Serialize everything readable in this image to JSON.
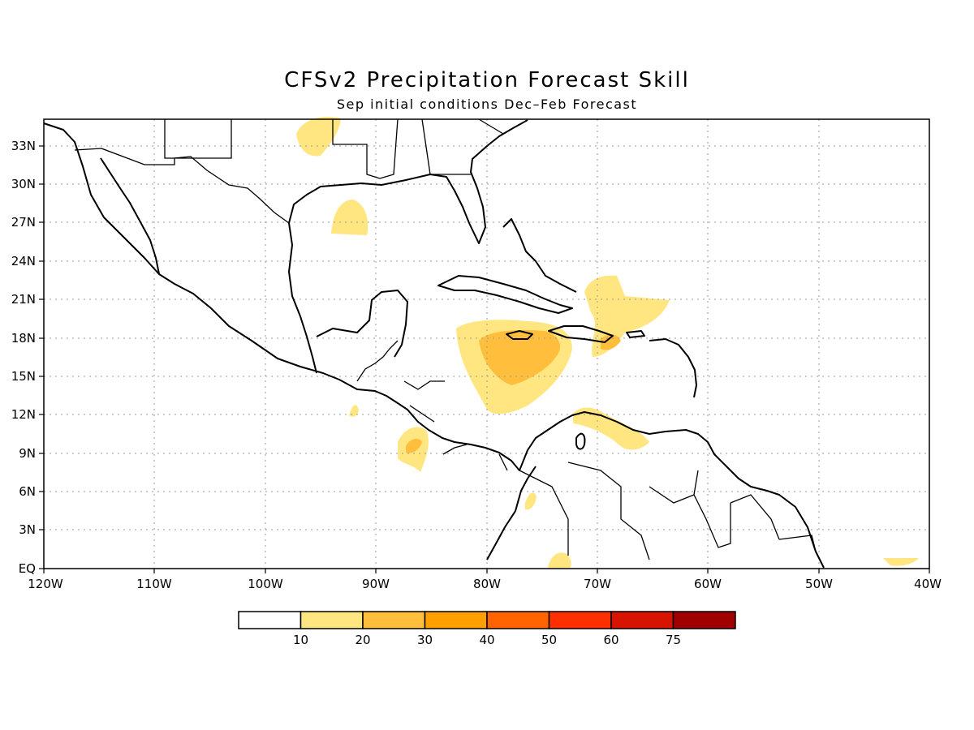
{
  "title": "CFSv2 Precipitation Forecast Skill",
  "subtitle": "Sep initial conditions  Dec–Feb Forecast",
  "lat_labels": [
    "EQ",
    "3N",
    "6N",
    "9N",
    "12N",
    "15N",
    "18N",
    "21N",
    "24N",
    "27N",
    "30N",
    "33N"
  ],
  "lon_labels": [
    "120W",
    "110W",
    "100W",
    "90W",
    "80W",
    "70W",
    "60W",
    "50W",
    "40W"
  ],
  "colorbar": {
    "colors": [
      "#ffffff",
      "#ffe680",
      "#ffbf3c",
      "#ffa000",
      "#ff6400",
      "#ff3000",
      "#d81400",
      "#a00000"
    ],
    "labels": [
      "10",
      "20",
      "30",
      "40",
      "50",
      "60",
      "75"
    ]
  }
}
